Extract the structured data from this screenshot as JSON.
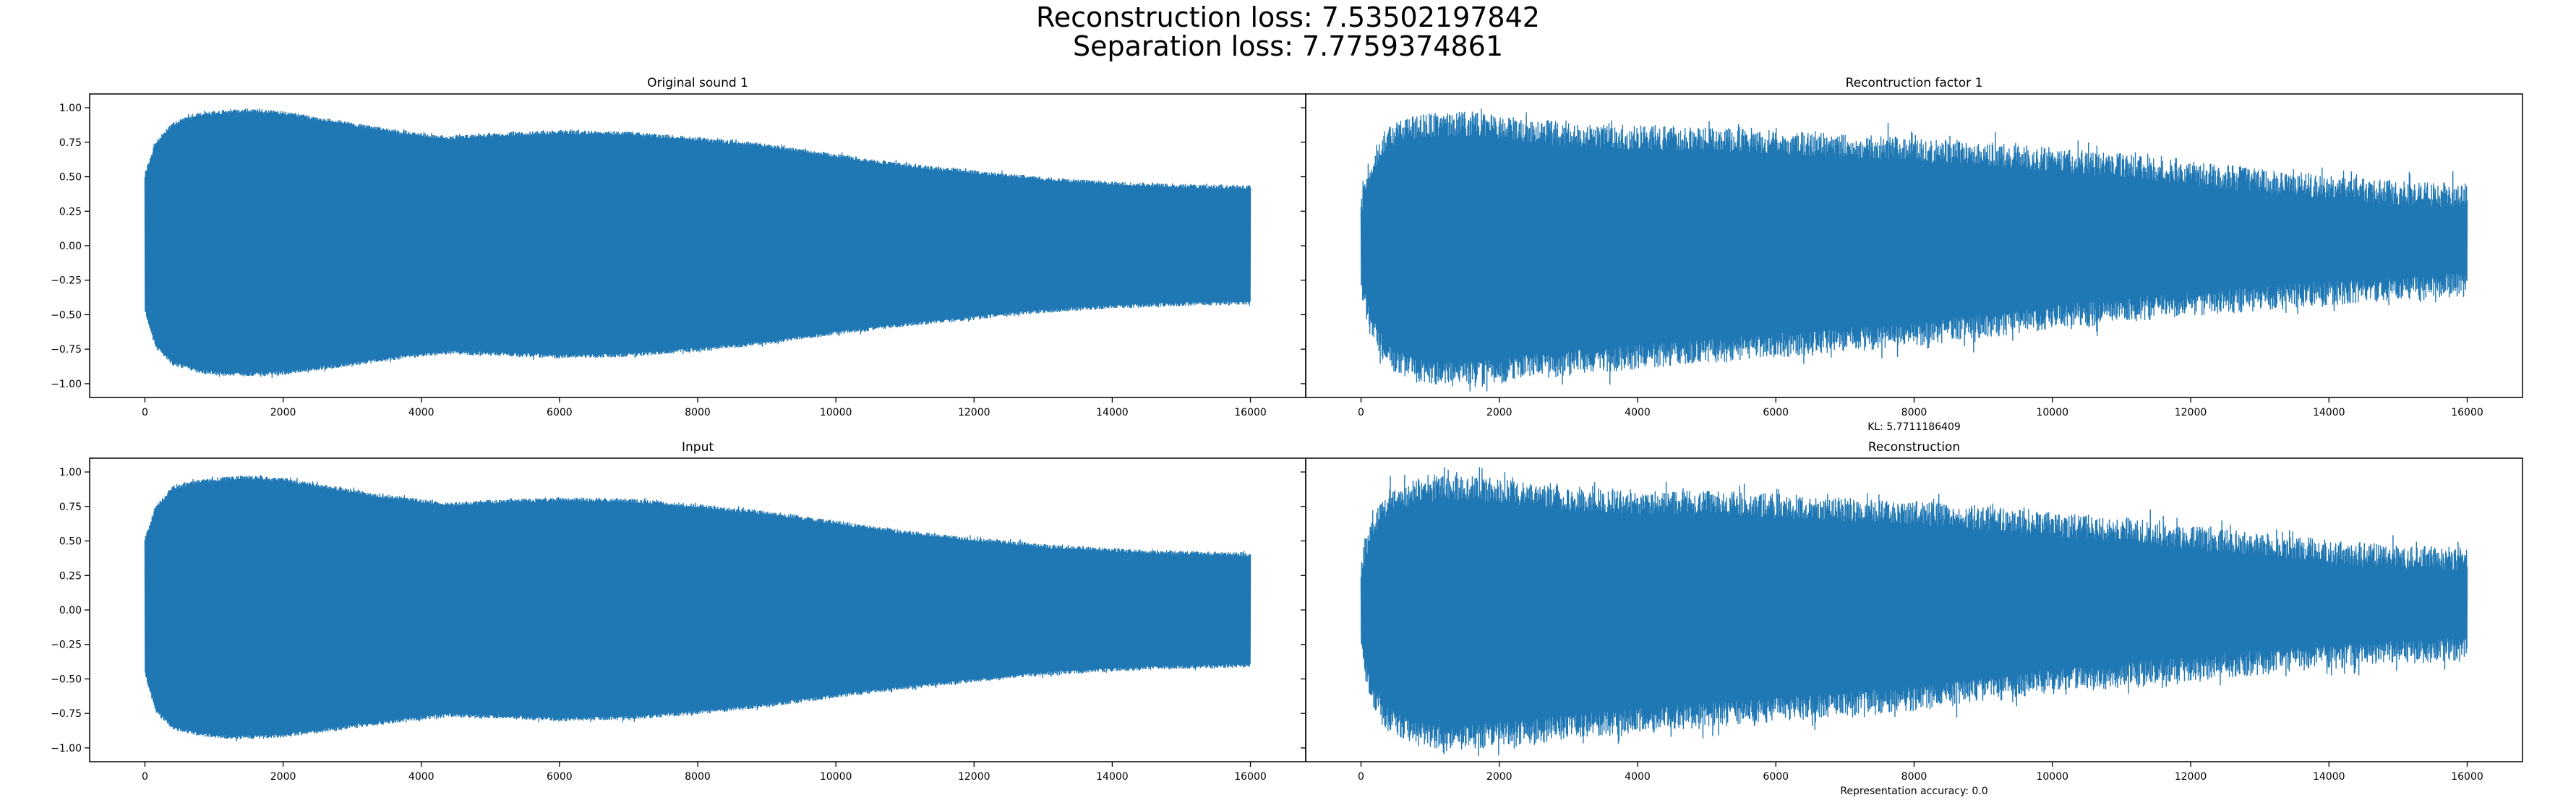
{
  "figure": {
    "suptitle_line1": "Reconstruction loss: 7.53502197842",
    "suptitle_line2": "Separation loss: 7.7759374861"
  },
  "colors": {
    "line": "#1f77b4",
    "axes": "#000000",
    "background": "#ffffff"
  },
  "chart_data": [
    {
      "type": "line",
      "title": "Original sound 1",
      "xlabel": "",
      "xlim": [
        -800,
        16800
      ],
      "ylim": [
        -1.1,
        1.1
      ],
      "xticks": [
        0,
        2000,
        4000,
        6000,
        8000,
        10000,
        12000,
        14000,
        16000
      ],
      "yticks": [
        1.0,
        0.75,
        0.5,
        0.25,
        0.0,
        -0.25,
        -0.5,
        -0.75,
        -1.0
      ],
      "ytick_labels": [
        "1.00",
        "0.75",
        "0.50",
        "0.25",
        "0.00",
        "−0.25",
        "−0.50",
        "−0.75",
        "−1.00"
      ],
      "grid": false,
      "series": [
        {
          "noise": 0.015,
          "envelope_x": [
            0,
            150,
            400,
            800,
            1200,
            1500,
            2000,
            2600,
            3200,
            3800,
            4400,
            5000,
            6000,
            7000,
            8000,
            9000,
            10000,
            11000,
            12000,
            13000,
            14000,
            15000,
            16000
          ],
          "envelope_upper": [
            0.5,
            0.74,
            0.88,
            0.95,
            0.97,
            0.98,
            0.96,
            0.91,
            0.86,
            0.81,
            0.78,
            0.8,
            0.82,
            0.81,
            0.77,
            0.72,
            0.65,
            0.58,
            0.53,
            0.48,
            0.45,
            0.43,
            0.42
          ],
          "envelope_lower": [
            -0.47,
            -0.72,
            -0.85,
            -0.91,
            -0.93,
            -0.93,
            -0.92,
            -0.88,
            -0.84,
            -0.8,
            -0.77,
            -0.78,
            -0.8,
            -0.79,
            -0.75,
            -0.7,
            -0.63,
            -0.57,
            -0.52,
            -0.47,
            -0.44,
            -0.42,
            -0.41
          ]
        }
      ]
    },
    {
      "type": "line",
      "title": "Recontruction factor 1",
      "xlabel": "KL: 5.7711186409",
      "xlim": [
        -800,
        16800
      ],
      "ylim": [
        -1.1,
        1.1
      ],
      "xticks": [
        0,
        2000,
        4000,
        6000,
        8000,
        10000,
        12000,
        14000,
        16000
      ],
      "yticks": [
        1.0,
        0.75,
        0.5,
        0.25,
        0.0,
        -0.25,
        -0.5,
        -0.75,
        -1.0
      ],
      "ytick_labels": [],
      "grid": false,
      "series": [
        {
          "noise": 0.09,
          "envelope_x": [
            0,
            150,
            400,
            800,
            1200,
            1600,
            2000,
            3000,
            4000,
            5000,
            6000,
            7000,
            8000,
            9000,
            10000,
            11000,
            12000,
            13000,
            14000,
            15000,
            16000
          ],
          "envelope_upper": [
            0.3,
            0.6,
            0.78,
            0.86,
            0.88,
            0.88,
            0.86,
            0.8,
            0.78,
            0.77,
            0.75,
            0.72,
            0.7,
            0.66,
            0.62,
            0.58,
            0.52,
            0.47,
            0.42,
            0.38,
            0.36
          ],
          "envelope_lower": [
            -0.3,
            -0.6,
            -0.8,
            -0.9,
            -0.93,
            -0.92,
            -0.9,
            -0.85,
            -0.8,
            -0.76,
            -0.72,
            -0.68,
            -0.64,
            -0.58,
            -0.52,
            -0.47,
            -0.42,
            -0.38,
            -0.34,
            -0.31,
            -0.28
          ]
        }
      ]
    },
    {
      "type": "line",
      "title": "Input",
      "xlabel": "",
      "xlim": [
        -800,
        16800
      ],
      "ylim": [
        -1.1,
        1.1
      ],
      "xticks": [
        0,
        2000,
        4000,
        6000,
        8000,
        10000,
        12000,
        14000,
        16000
      ],
      "yticks": [
        1.0,
        0.75,
        0.5,
        0.25,
        0.0,
        -0.25,
        -0.5,
        -0.75,
        -1.0
      ],
      "ytick_labels": [
        "1.00",
        "0.75",
        "0.50",
        "0.25",
        "0.00",
        "−0.25",
        "−0.50",
        "−0.75",
        "−1.00"
      ],
      "grid": false,
      "series": [
        {
          "noise": 0.015,
          "envelope_x": [
            0,
            150,
            400,
            800,
            1200,
            1500,
            2000,
            2600,
            3200,
            3800,
            4400,
            5000,
            6000,
            7000,
            8000,
            9000,
            10000,
            11000,
            12000,
            13000,
            14000,
            15000,
            16000
          ],
          "envelope_upper": [
            0.5,
            0.74,
            0.88,
            0.93,
            0.95,
            0.96,
            0.94,
            0.89,
            0.84,
            0.8,
            0.76,
            0.78,
            0.8,
            0.79,
            0.75,
            0.7,
            0.63,
            0.56,
            0.51,
            0.46,
            0.43,
            0.41,
            0.4
          ],
          "envelope_lower": [
            -0.45,
            -0.72,
            -0.85,
            -0.9,
            -0.92,
            -0.92,
            -0.91,
            -0.87,
            -0.83,
            -0.79,
            -0.76,
            -0.77,
            -0.79,
            -0.78,
            -0.74,
            -0.69,
            -0.62,
            -0.56,
            -0.51,
            -0.46,
            -0.43,
            -0.41,
            -0.4
          ]
        }
      ]
    },
    {
      "type": "line",
      "title": "Reconstruction",
      "xlabel": "Representation accuracy: 0.0",
      "xlim": [
        -800,
        16800
      ],
      "ylim": [
        -1.1,
        1.1
      ],
      "xticks": [
        0,
        2000,
        4000,
        6000,
        8000,
        10000,
        12000,
        14000,
        16000
      ],
      "yticks": [
        1.0,
        0.75,
        0.5,
        0.25,
        0.0,
        -0.25,
        -0.5,
        -0.75,
        -1.0
      ],
      "ytick_labels": [],
      "grid": false,
      "series": [
        {
          "noise": 0.09,
          "envelope_x": [
            0,
            150,
            400,
            800,
            1200,
            1600,
            2000,
            3000,
            4000,
            5000,
            6000,
            7000,
            8000,
            9000,
            10000,
            11000,
            12000,
            13000,
            14000,
            15000,
            16000
          ],
          "envelope_upper": [
            0.3,
            0.6,
            0.78,
            0.86,
            0.88,
            0.88,
            0.86,
            0.8,
            0.78,
            0.77,
            0.75,
            0.72,
            0.7,
            0.66,
            0.62,
            0.58,
            0.52,
            0.47,
            0.42,
            0.38,
            0.36
          ],
          "envelope_lower": [
            -0.3,
            -0.6,
            -0.8,
            -0.9,
            -0.93,
            -0.92,
            -0.9,
            -0.85,
            -0.8,
            -0.76,
            -0.72,
            -0.68,
            -0.64,
            -0.58,
            -0.52,
            -0.47,
            -0.42,
            -0.38,
            -0.34,
            -0.31,
            -0.28
          ]
        }
      ]
    }
  ]
}
